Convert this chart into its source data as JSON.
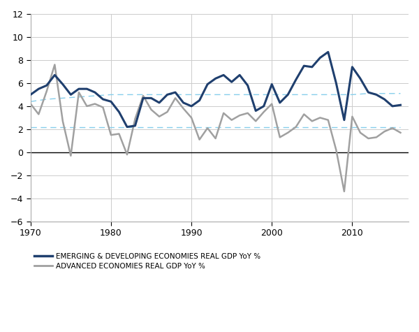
{
  "title": "",
  "xlim": [
    1970,
    2017
  ],
  "ylim": [
    -6,
    12
  ],
  "yticks": [
    -6,
    -4,
    -2,
    0,
    2,
    4,
    6,
    8,
    10,
    12
  ],
  "xticks": [
    1970,
    1980,
    1990,
    2000,
    2010
  ],
  "emerging_color": "#1F3F6E",
  "advanced_color": "#A0A0A0",
  "trend_color": "#87CEEB",
  "background_color": "#FFFFFF",
  "grid_color": "#CCCCCC",
  "emerging_label": "EMERGING & DEVELOPING ECONOMIES REAL GDP YoY %",
  "advanced_label": "ADVANCED ECONOMIES REAL GDP YoY %",
  "years": [
    1970,
    1971,
    1972,
    1973,
    1974,
    1975,
    1976,
    1977,
    1978,
    1979,
    1980,
    1981,
    1982,
    1983,
    1984,
    1985,
    1986,
    1987,
    1988,
    1989,
    1990,
    1991,
    1992,
    1993,
    1994,
    1995,
    1996,
    1997,
    1998,
    1999,
    2000,
    2001,
    2002,
    2003,
    2004,
    2005,
    2006,
    2007,
    2008,
    2009,
    2010,
    2011,
    2012,
    2013,
    2014,
    2015,
    2016
  ],
  "emerging_gdp": [
    5.0,
    5.5,
    5.8,
    6.7,
    5.9,
    5.0,
    5.5,
    5.5,
    5.2,
    4.6,
    4.4,
    3.5,
    2.2,
    2.3,
    4.7,
    4.7,
    4.3,
    5.0,
    5.2,
    4.3,
    4.0,
    4.5,
    5.9,
    6.4,
    6.7,
    6.1,
    6.7,
    5.8,
    3.6,
    4.0,
    5.9,
    4.3,
    5.0,
    6.3,
    7.5,
    7.4,
    8.2,
    8.7,
    6.0,
    2.8,
    7.4,
    6.4,
    5.2,
    5.0,
    4.6,
    4.0,
    4.1
  ],
  "advanced_gdp": [
    4.2,
    3.3,
    5.3,
    7.6,
    2.7,
    -0.3,
    5.2,
    4.0,
    4.2,
    3.9,
    1.5,
    1.6,
    -0.2,
    2.9,
    4.9,
    3.7,
    3.1,
    3.5,
    4.7,
    3.8,
    3.0,
    1.1,
    2.1,
    1.2,
    3.4,
    2.8,
    3.2,
    3.4,
    2.7,
    3.5,
    4.2,
    1.3,
    1.7,
    2.2,
    3.3,
    2.7,
    3.0,
    2.8,
    0.2,
    -3.4,
    3.1,
    1.7,
    1.2,
    1.3,
    1.8,
    2.1,
    1.7
  ],
  "emerging_trend": [
    4.4,
    4.5,
    4.6,
    4.65,
    4.7,
    4.75,
    4.8,
    4.85,
    4.9,
    4.95,
    5.0,
    5.0,
    5.0,
    5.0,
    5.0,
    5.0,
    5.0,
    5.0,
    5.0,
    5.0,
    5.0,
    5.0,
    5.0,
    5.0,
    5.0,
    5.0,
    5.0,
    5.0,
    5.0,
    5.0,
    5.0,
    5.0,
    5.0,
    5.0,
    5.0,
    5.0,
    5.0,
    5.0,
    5.0,
    5.0,
    5.0,
    5.05,
    5.1,
    5.1,
    5.1,
    5.1,
    5.1
  ],
  "advanced_trend": [
    2.2,
    2.2,
    2.2,
    2.2,
    2.2,
    2.2,
    2.2,
    2.2,
    2.2,
    2.2,
    2.2,
    2.2,
    2.2,
    2.2,
    2.2,
    2.2,
    2.2,
    2.2,
    2.2,
    2.2,
    2.2,
    2.2,
    2.2,
    2.2,
    2.2,
    2.2,
    2.2,
    2.2,
    2.2,
    2.2,
    2.2,
    2.2,
    2.2,
    2.2,
    2.2,
    2.2,
    2.2,
    2.2,
    2.2,
    2.2,
    2.2,
    2.2,
    2.2,
    2.2,
    2.2,
    2.2,
    2.2
  ]
}
